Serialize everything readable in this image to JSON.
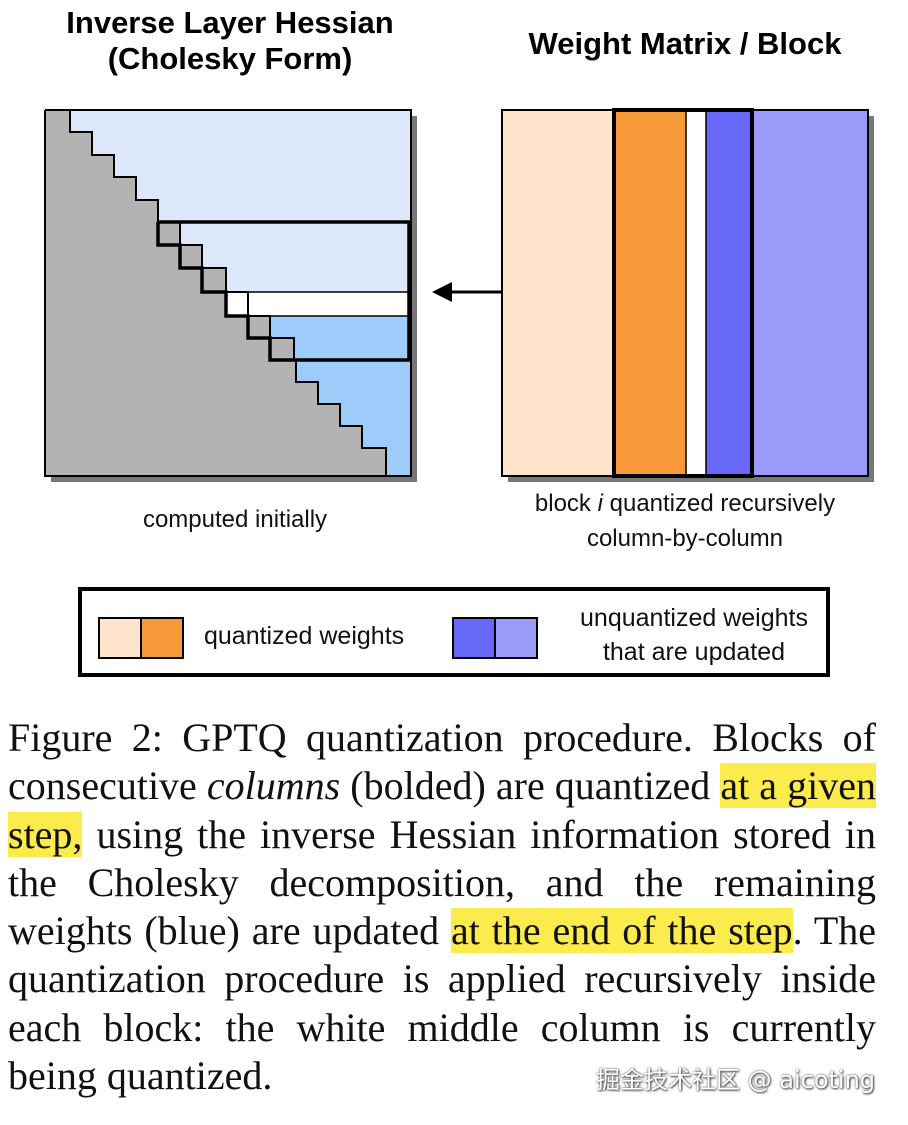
{
  "panels": {
    "left_title": "Inverse Layer Hessian (Cholesky Form)",
    "left_caption": "computed initially",
    "right_title": "Weight Matrix / Block",
    "right_caption": "block i quantized recursively column-by-column"
  },
  "colors": {
    "light_blue": "#dce7f9",
    "mid_blue": "#9dcbfa",
    "gray": "#b3b3b3",
    "peach": "#fde4ca",
    "orange": "#f69a3a",
    "blue": "#6868f8",
    "lavender": "#9b9bf9",
    "highlight": "#fbeb4c"
  },
  "legend": {
    "quantized_label": "quantized weights",
    "unquantized_label_line1": "unquantized weights",
    "unquantized_label_line2": "that are updated"
  },
  "caption": {
    "part1": "Figure 2: GPTQ quantization procedure. Blocks of consecutive ",
    "emphasis": "columns",
    "part2": " (bolded) are quantized ",
    "highlight1": "at a given step,",
    "part3": " using the inverse Hessian information stored in the Cholesky decomposition, and the remaining weights (blue) are updated ",
    "highlight2": "at the end of the step",
    "part4": ".  The quantization procedure is applied recursively inside each block: the white middle column is currently being quantized."
  },
  "watermark": "掘金技术社区 @ aicoting"
}
